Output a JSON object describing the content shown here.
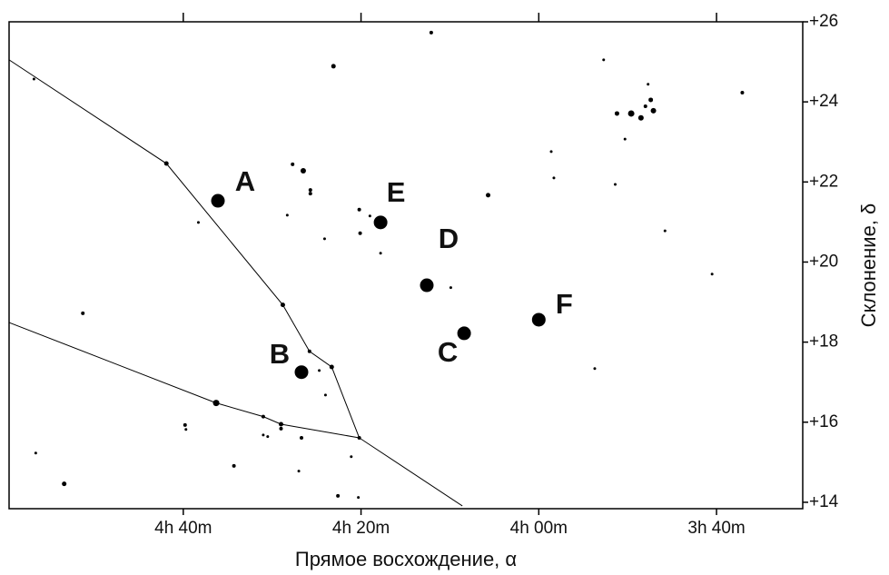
{
  "chart_data": {
    "type": "scatter",
    "x_label": "Прямое восхождение, α",
    "y_label": "Склонение, δ",
    "xlim": [
      299.6,
      210.3
    ],
    "ylim": [
      13.84,
      26
    ],
    "xticks": [
      {
        "value": 280,
        "label": "4h 40m"
      },
      {
        "value": 260,
        "label": "4h 20m"
      },
      {
        "value": 240,
        "label": "4h 00m"
      },
      {
        "value": 220,
        "label": "3h 40m"
      }
    ],
    "yticks": [
      {
        "value": 26,
        "label": "+26"
      },
      {
        "value": 24,
        "label": "+24"
      },
      {
        "value": 22,
        "label": "+22"
      },
      {
        "value": 20,
        "label": "+20"
      },
      {
        "value": 18,
        "label": "+18"
      },
      {
        "value": 16,
        "label": "+16"
      },
      {
        "value": 14,
        "label": "+14"
      }
    ],
    "color": "#000000",
    "stars": {
      "x": [
        296.8,
        252.1,
        263.1,
        232.7,
        217.1,
        227.7,
        231.2,
        229.6,
        228.5,
        228.0,
        227.4,
        227.1,
        230.3,
        281.9,
        267.7,
        266.5,
        265.7,
        265.7,
        268.3,
        264.1,
        278.3,
        260.2,
        259.0,
        260.1,
        257.8,
        245.7,
        238.6,
        238.3,
        231.4,
        225.8,
        220.5,
        291.3,
        249.9,
        268.8,
        265.8,
        263.3,
        264.7,
        264.0,
        233.7,
        276.3,
        271.0,
        269.0,
        269.0,
        279.8,
        279.7,
        271.0,
        270.5,
        266.7,
        260.2,
        296.6,
        261.1,
        274.3,
        267.0,
        293.4,
        262.6,
        260.3
      ],
      "y": [
        24.57,
        25.73,
        24.89,
        25.05,
        24.23,
        24.44,
        23.71,
        23.71,
        23.6,
        23.89,
        24.05,
        23.78,
        23.07,
        22.46,
        22.44,
        22.28,
        21.8,
        21.71,
        21.17,
        20.58,
        20.99,
        21.31,
        21.15,
        20.72,
        20.22,
        21.67,
        22.76,
        22.1,
        21.94,
        20.78,
        19.7,
        18.72,
        19.36,
        18.93,
        17.77,
        17.38,
        17.29,
        16.68,
        17.34,
        16.48,
        16.14,
        15.95,
        15.84,
        15.93,
        15.82,
        15.68,
        15.64,
        15.61,
        15.61,
        15.23,
        15.14,
        14.91,
        14.78,
        14.46,
        14.16,
        14.12
      ],
      "sizes": [
        1.5,
        2,
        2.5,
        1.5,
        2,
        1.5,
        2.5,
        3.5,
        3,
        2,
        2.5,
        3,
        1.5,
        2.5,
        2,
        3,
        2,
        2,
        1.5,
        1.5,
        1.5,
        2,
        1.5,
        2,
        1.5,
        2.5,
        1.5,
        1.5,
        1.5,
        1.5,
        1.5,
        2,
        1.5,
        2.5,
        2,
        2.5,
        1.5,
        1.5,
        1.5,
        3.5,
        2,
        2.5,
        2,
        2,
        1.5,
        1.5,
        1.5,
        2,
        2,
        1.5,
        1.5,
        2,
        1.5,
        2.5,
        2,
        1.5
      ]
    },
    "marked_stars": {
      "labels": [
        "A",
        "B",
        "C",
        "D",
        "E",
        "F"
      ],
      "x": [
        276.1,
        266.7,
        248.4,
        252.6,
        257.8,
        240.0
      ],
      "y": [
        21.53,
        17.25,
        18.22,
        19.42,
        20.99,
        18.56
      ]
    },
    "boundaries": [
      {
        "x": [
          299.6,
          281.9,
          268.8,
          265.8,
          263.3,
          260.2,
          248.6
        ],
        "y": [
          25.05,
          22.46,
          18.93,
          17.77,
          17.38,
          15.61,
          13.91
        ]
      },
      {
        "x": [
          299.6,
          276.3,
          271.0,
          269.0,
          260.2
        ],
        "y": [
          18.49,
          16.48,
          16.14,
          15.95,
          15.61
        ]
      }
    ]
  }
}
